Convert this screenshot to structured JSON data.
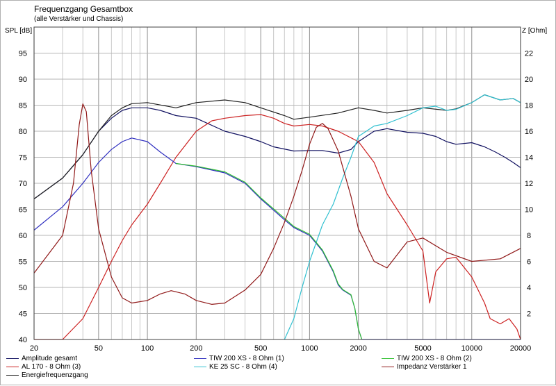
{
  "chart_data": {
    "type": "line",
    "title": "Frequenzgang Gesamtbox",
    "subtitle": "(alle Verstärker und Chassis)",
    "ylabel_left": "SPL [dB]",
    "ylabel_right": "Z [Ohm]",
    "xscale": "log",
    "xlim": [
      20,
      20000
    ],
    "ylim_left": [
      40,
      100
    ],
    "ylim_right": [
      0,
      24
    ],
    "x_ticks": [
      20,
      50,
      100,
      200,
      500,
      1000,
      2000,
      5000,
      10000,
      20000
    ],
    "y_ticks_left": [
      40,
      45,
      50,
      55,
      60,
      65,
      70,
      75,
      80,
      85,
      90,
      95
    ],
    "y_ticks_right": [
      2,
      4,
      6,
      8,
      10,
      12,
      14,
      16,
      18,
      20,
      22
    ],
    "grid": true,
    "series": [
      {
        "name": "Amplitude gesamt",
        "color": "#101060",
        "axis": "left",
        "points": [
          [
            20,
            67
          ],
          [
            30,
            71
          ],
          [
            40,
            75.5
          ],
          [
            50,
            80
          ],
          [
            60,
            82.5
          ],
          [
            70,
            84
          ],
          [
            80,
            84.5
          ],
          [
            100,
            84.5
          ],
          [
            120,
            84
          ],
          [
            150,
            83
          ],
          [
            200,
            82.5
          ],
          [
            300,
            80
          ],
          [
            400,
            79
          ],
          [
            500,
            78
          ],
          [
            600,
            77
          ],
          [
            800,
            76.2
          ],
          [
            1000,
            76.3
          ],
          [
            1200,
            76.3
          ],
          [
            1500,
            75.8
          ],
          [
            1800,
            76.5
          ],
          [
            2000,
            78
          ],
          [
            2500,
            80
          ],
          [
            3000,
            80.5
          ],
          [
            4000,
            79.8
          ],
          [
            5000,
            79.6
          ],
          [
            6000,
            79
          ],
          [
            7000,
            78
          ],
          [
            8000,
            77.5
          ],
          [
            10000,
            77.8
          ],
          [
            12000,
            77
          ],
          [
            14000,
            76
          ],
          [
            16000,
            75
          ],
          [
            18000,
            74
          ],
          [
            20000,
            73
          ]
        ]
      },
      {
        "name": "AL 170 - 8 Ohm (3)",
        "color": "#cc2020",
        "axis": "left",
        "points": [
          [
            20,
            40
          ],
          [
            30,
            40
          ],
          [
            40,
            44
          ],
          [
            50,
            50
          ],
          [
            60,
            55
          ],
          [
            70,
            59
          ],
          [
            80,
            62
          ],
          [
            100,
            66
          ],
          [
            120,
            70
          ],
          [
            150,
            75
          ],
          [
            200,
            80
          ],
          [
            250,
            82
          ],
          [
            300,
            82.5
          ],
          [
            400,
            83
          ],
          [
            500,
            83.2
          ],
          [
            600,
            82.5
          ],
          [
            700,
            81.5
          ],
          [
            800,
            81
          ],
          [
            1000,
            81.3
          ],
          [
            1200,
            81
          ],
          [
            1500,
            80
          ],
          [
            2000,
            78
          ],
          [
            2500,
            74
          ],
          [
            3000,
            68
          ],
          [
            4000,
            62
          ],
          [
            5000,
            57
          ],
          [
            5500,
            47
          ],
          [
            6000,
            53
          ],
          [
            7000,
            55.5
          ],
          [
            8000,
            55.8
          ],
          [
            10000,
            52
          ],
          [
            12000,
            47
          ],
          [
            13000,
            44
          ],
          [
            15000,
            43
          ],
          [
            17000,
            44
          ],
          [
            19000,
            42
          ],
          [
            20000,
            40
          ]
        ]
      },
      {
        "name": "Energiefrequenzgang",
        "color": "#202020",
        "axis": "left",
        "points": [
          [
            20,
            67
          ],
          [
            30,
            71
          ],
          [
            40,
            75.5
          ],
          [
            50,
            80
          ],
          [
            60,
            83
          ],
          [
            70,
            84.5
          ],
          [
            80,
            85.3
          ],
          [
            100,
            85.5
          ],
          [
            150,
            84.5
          ],
          [
            200,
            85.5
          ],
          [
            300,
            86
          ],
          [
            400,
            85.5
          ],
          [
            500,
            84.5
          ],
          [
            700,
            83
          ],
          [
            800,
            82.3
          ],
          [
            1000,
            82.7
          ],
          [
            1500,
            83.5
          ],
          [
            2000,
            84.5
          ],
          [
            2500,
            84
          ],
          [
            3000,
            83.5
          ],
          [
            4000,
            84
          ],
          [
            5000,
            84.5
          ],
          [
            7000,
            84
          ],
          [
            8000,
            84.3
          ],
          [
            10000,
            85.5
          ],
          [
            12000,
            87
          ],
          [
            15000,
            86
          ],
          [
            18000,
            86.3
          ],
          [
            20000,
            85.5
          ]
        ]
      },
      {
        "name": "TIW 200 XS - 8 Ohm (1)",
        "color": "#3030c0",
        "axis": "left",
        "points": [
          [
            20,
            61
          ],
          [
            30,
            65.5
          ],
          [
            40,
            70
          ],
          [
            50,
            74
          ],
          [
            60,
            76.5
          ],
          [
            70,
            78
          ],
          [
            80,
            78.7
          ],
          [
            100,
            78
          ],
          [
            120,
            76
          ],
          [
            150,
            73.8
          ],
          [
            200,
            73.2
          ],
          [
            300,
            72
          ],
          [
            400,
            70
          ],
          [
            500,
            67
          ],
          [
            700,
            63
          ],
          [
            800,
            61.5
          ],
          [
            1000,
            60
          ],
          [
            1200,
            57
          ],
          [
            1400,
            53
          ],
          [
            1500,
            50.5
          ],
          [
            1600,
            49.5
          ],
          [
            1800,
            48.5
          ],
          [
            1900,
            46
          ],
          [
            2000,
            42
          ],
          [
            2100,
            40
          ],
          [
            5000,
            40
          ],
          [
            20000,
            40
          ]
        ]
      },
      {
        "name": "KE 25 SC - 8 Ohm    (4)",
        "color": "#30c0d0",
        "axis": "left",
        "points": [
          [
            700,
            40
          ],
          [
            800,
            44
          ],
          [
            900,
            50
          ],
          [
            1000,
            55
          ],
          [
            1200,
            62
          ],
          [
            1400,
            66
          ],
          [
            1600,
            71
          ],
          [
            1800,
            75
          ],
          [
            2000,
            79
          ],
          [
            2500,
            81
          ],
          [
            3000,
            81.5
          ],
          [
            4000,
            83
          ],
          [
            5000,
            84.5
          ],
          [
            6000,
            84.8
          ],
          [
            7000,
            84
          ],
          [
            8000,
            84.2
          ],
          [
            10000,
            85.5
          ],
          [
            12000,
            87
          ],
          [
            15000,
            86
          ],
          [
            18000,
            86.3
          ],
          [
            20000,
            85.5
          ]
        ]
      },
      {
        "name": "TIW 200 XS - 8 Ohm (2)",
        "color": "#30c030",
        "axis": "left",
        "points": [
          [
            150,
            73.8
          ],
          [
            200,
            73.3
          ],
          [
            300,
            72.2
          ],
          [
            400,
            70.2
          ],
          [
            500,
            67.2
          ],
          [
            700,
            63.3
          ],
          [
            800,
            61.7
          ],
          [
            1000,
            60.2
          ],
          [
            1200,
            57.2
          ],
          [
            1400,
            53.2
          ],
          [
            1500,
            50.7
          ],
          [
            1600,
            49.6
          ],
          [
            1800,
            48.6
          ],
          [
            1900,
            46
          ],
          [
            2000,
            42
          ],
          [
            2100,
            40
          ]
        ]
      },
      {
        "name": "Impedanz Verstärker 1",
        "color": "#901818",
        "axis": "right",
        "points": [
          [
            20,
            5.1
          ],
          [
            30,
            8
          ],
          [
            35,
            12
          ],
          [
            38,
            16.5
          ],
          [
            40,
            18.1
          ],
          [
            42,
            17.5
          ],
          [
            45,
            13
          ],
          [
            50,
            8.5
          ],
          [
            60,
            4.8
          ],
          [
            70,
            3.2
          ],
          [
            80,
            2.8
          ],
          [
            100,
            3
          ],
          [
            120,
            3.5
          ],
          [
            140,
            3.75
          ],
          [
            170,
            3.5
          ],
          [
            200,
            3
          ],
          [
            250,
            2.7
          ],
          [
            300,
            2.8
          ],
          [
            400,
            3.8
          ],
          [
            500,
            5
          ],
          [
            600,
            7
          ],
          [
            700,
            9
          ],
          [
            800,
            11
          ],
          [
            900,
            13
          ],
          [
            1000,
            15
          ],
          [
            1100,
            16.3
          ],
          [
            1200,
            16.6
          ],
          [
            1300,
            16.2
          ],
          [
            1500,
            14.5
          ],
          [
            1800,
            11
          ],
          [
            2000,
            8.5
          ],
          [
            2500,
            6
          ],
          [
            3000,
            5.5
          ],
          [
            4000,
            7.5
          ],
          [
            5000,
            7.8
          ],
          [
            7000,
            6.7
          ],
          [
            10000,
            6
          ],
          [
            15000,
            6.2
          ],
          [
            20000,
            7
          ]
        ]
      }
    ]
  }
}
